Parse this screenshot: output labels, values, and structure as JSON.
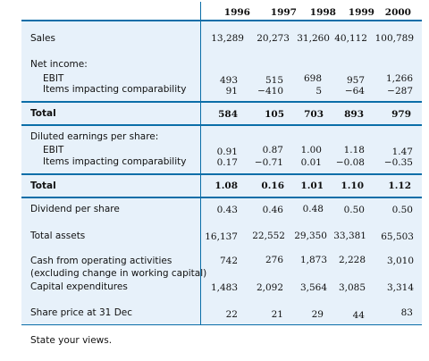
{
  "years": [
    "1996",
    "1997",
    "1998",
    "1999",
    "2000"
  ],
  "rows": [
    {
      "label": "Sales",
      "values": [
        "13,289",
        "20,273",
        "31,260",
        "40,112",
        "100,789"
      ],
      "indent": false,
      "bold": false
    },
    {
      "label": "Net income:",
      "values": [
        "",
        "",
        "",
        "",
        ""
      ],
      "indent": false,
      "bold": false
    },
    {
      "label": "EBIT",
      "values": [
        "493",
        "515",
        "698",
        "957",
        "1,266"
      ],
      "indent": true,
      "bold": false
    },
    {
      "label": "Items impacting comparability",
      "values": [
        "91",
        "−410",
        "5",
        "−64",
        "−287"
      ],
      "indent": true,
      "bold": false
    },
    {
      "label": "Total",
      "values": [
        "584",
        "105",
        "703",
        "893",
        "979"
      ],
      "indent": false,
      "bold": true
    },
    {
      "label": "Diluted earnings per share:",
      "values": [
        "",
        "",
        "",
        "",
        ""
      ],
      "indent": false,
      "bold": false
    },
    {
      "label": "EBIT",
      "values": [
        "0.91",
        "0.87",
        "1.00",
        "1.18",
        "1.47"
      ],
      "indent": true,
      "bold": false
    },
    {
      "label": "Items impacting comparability",
      "values": [
        "0.17",
        "−0.71",
        "0.01",
        "−0.08",
        "−0.35"
      ],
      "indent": true,
      "bold": false
    },
    {
      "label": "Total",
      "values": [
        "1.08",
        "0.16",
        "1.01",
        "1.10",
        "1.12"
      ],
      "indent": false,
      "bold": true
    },
    {
      "label": "Dividend per share",
      "values": [
        "0.43",
        "0.46",
        "0.48",
        "0.50",
        "0.50"
      ],
      "indent": false,
      "bold": false
    },
    {
      "label": "Total assets",
      "values": [
        "16,137",
        "22,552",
        "29,350",
        "33,381",
        "65,503"
      ],
      "indent": false,
      "bold": false
    },
    {
      "label": "Cash from operating activities",
      "values": [
        "742",
        "276",
        "1,873",
        "2,228",
        "3,010"
      ],
      "indent": false,
      "bold": false
    },
    {
      "label": "(excluding change in working capital)",
      "values": [
        "",
        "",
        "",
        "",
        ""
      ],
      "indent": false,
      "bold": false
    },
    {
      "label": "Capital expenditures",
      "values": [
        "1,483",
        "2,092",
        "3,564",
        "3,085",
        "3,314"
      ],
      "indent": false,
      "bold": false
    },
    {
      "label": "Share price at 31 Dec",
      "values": [
        "22",
        "21",
        "29",
        "44",
        "83"
      ],
      "indent": false,
      "bold": false
    }
  ],
  "footer": "State your views.",
  "colors": {
    "background": "#e7f1fa",
    "rule": "#0b6ea8"
  }
}
